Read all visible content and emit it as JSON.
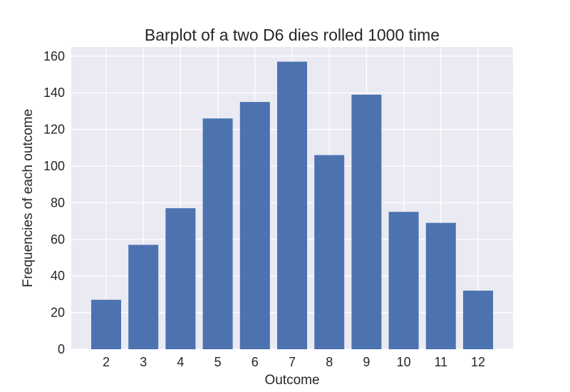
{
  "chart_data": {
    "type": "bar",
    "title": "Barplot of a two D6 dies rolled 1000 time",
    "xlabel": "Outcome",
    "ylabel": "Frequencies of each outcome",
    "categories": [
      "2",
      "3",
      "4",
      "5",
      "6",
      "7",
      "8",
      "9",
      "10",
      "11",
      "12"
    ],
    "values": [
      27,
      57,
      77,
      126,
      135,
      157,
      106,
      139,
      75,
      69,
      32
    ],
    "ylim": [
      0,
      165
    ],
    "yticks": [
      0,
      20,
      40,
      60,
      80,
      100,
      120,
      140,
      160
    ],
    "grid": true,
    "legend": "none"
  },
  "colors": {
    "bar": "#4c72b0",
    "plot_background": "#eaeaf2",
    "grid": "#ffffff",
    "text": "#262626"
  }
}
